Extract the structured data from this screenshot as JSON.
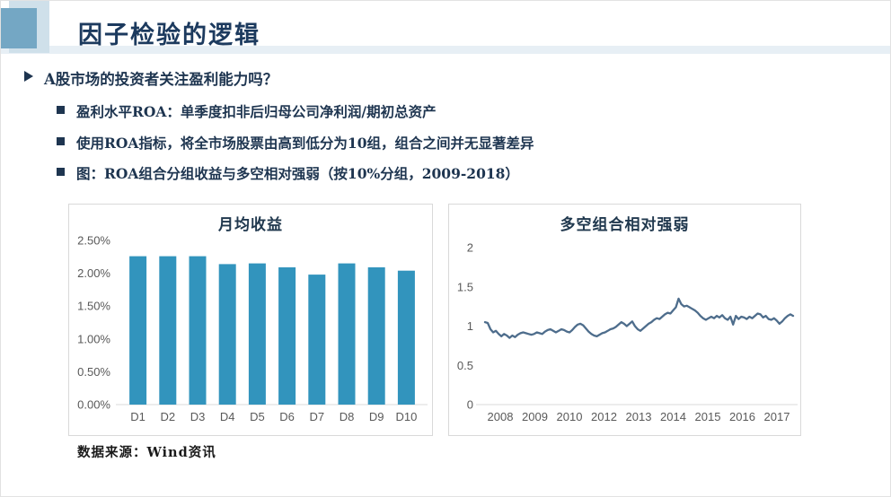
{
  "slide": {
    "header": {
      "title": "因子检验的逻辑"
    },
    "bullets": {
      "question": "A股市场的投资者关注盈利能力吗？",
      "items": [
        "盈利水平ROA：单季度扣非后归母公司净利润/期初总资产",
        "使用ROA指标，将全市场股票由高到低分为10组，组合之间并无显著差异",
        "图：ROA组合分组收益与多空相对强弱（按10%分组，2009-2018）"
      ]
    },
    "source_note": "数据来源：Wind资讯"
  },
  "colors": {
    "accent_dark": "#1e3550",
    "bar_fill": "#3294bd",
    "line_stroke": "#4e6d8c",
    "axis_text": "#595959",
    "chart_border": "#d9d9d9",
    "deco_light_blue": "#cfe0ea",
    "deco_mid_blue": "#74a7c4",
    "band_blue": "#e7eff5"
  },
  "chart_data": [
    {
      "type": "bar",
      "title": "月均收益",
      "categories": [
        "D1",
        "D2",
        "D3",
        "D4",
        "D5",
        "D6",
        "D7",
        "D8",
        "D9",
        "D10"
      ],
      "values": [
        2.26,
        2.26,
        2.26,
        2.14,
        2.15,
        2.09,
        1.98,
        2.15,
        2.09,
        2.04
      ],
      "unit": "%",
      "ylim": [
        0,
        2.5
      ],
      "ytick_labels": [
        "0.00%",
        "0.50%",
        "1.00%",
        "1.50%",
        "2.00%",
        "2.50%"
      ],
      "grid": false,
      "legend": "none"
    },
    {
      "type": "line",
      "title": "多空组合相对强弱",
      "xtick_labels": [
        "2008",
        "2009",
        "2010",
        "2012",
        "2013",
        "2014",
        "2015",
        "2016",
        "2017"
      ],
      "ylim": [
        0,
        2
      ],
      "ytick_labels": [
        "0",
        "0.5",
        "1",
        "1.5",
        "2"
      ],
      "values": [
        1.05,
        1.04,
        0.96,
        0.92,
        0.94,
        0.9,
        0.87,
        0.9,
        0.88,
        0.85,
        0.88,
        0.86,
        0.89,
        0.91,
        0.92,
        0.91,
        0.9,
        0.89,
        0.9,
        0.92,
        0.91,
        0.9,
        0.93,
        0.95,
        0.96,
        0.94,
        0.92,
        0.94,
        0.96,
        0.95,
        0.93,
        0.92,
        0.95,
        0.99,
        1.02,
        1.03,
        1.01,
        0.97,
        0.93,
        0.9,
        0.88,
        0.87,
        0.89,
        0.91,
        0.92,
        0.94,
        0.96,
        0.97,
        0.99,
        1.02,
        1.05,
        1.03,
        1.0,
        1.03,
        1.06,
        1.0,
        0.96,
        0.94,
        0.97,
        1.0,
        1.03,
        1.05,
        1.08,
        1.1,
        1.09,
        1.12,
        1.15,
        1.17,
        1.16,
        1.2,
        1.24,
        1.35,
        1.28,
        1.25,
        1.26,
        1.24,
        1.22,
        1.2,
        1.17,
        1.13,
        1.1,
        1.08,
        1.1,
        1.12,
        1.1,
        1.13,
        1.11,
        1.14,
        1.1,
        1.08,
        1.12,
        1.02,
        1.13,
        1.09,
        1.12,
        1.11,
        1.09,
        1.12,
        1.1,
        1.13,
        1.16,
        1.15,
        1.11,
        1.13,
        1.09,
        1.08,
        1.1,
        1.07,
        1.03,
        1.06,
        1.1,
        1.13,
        1.15,
        1.13
      ],
      "grid": false,
      "legend": "none"
    }
  ]
}
